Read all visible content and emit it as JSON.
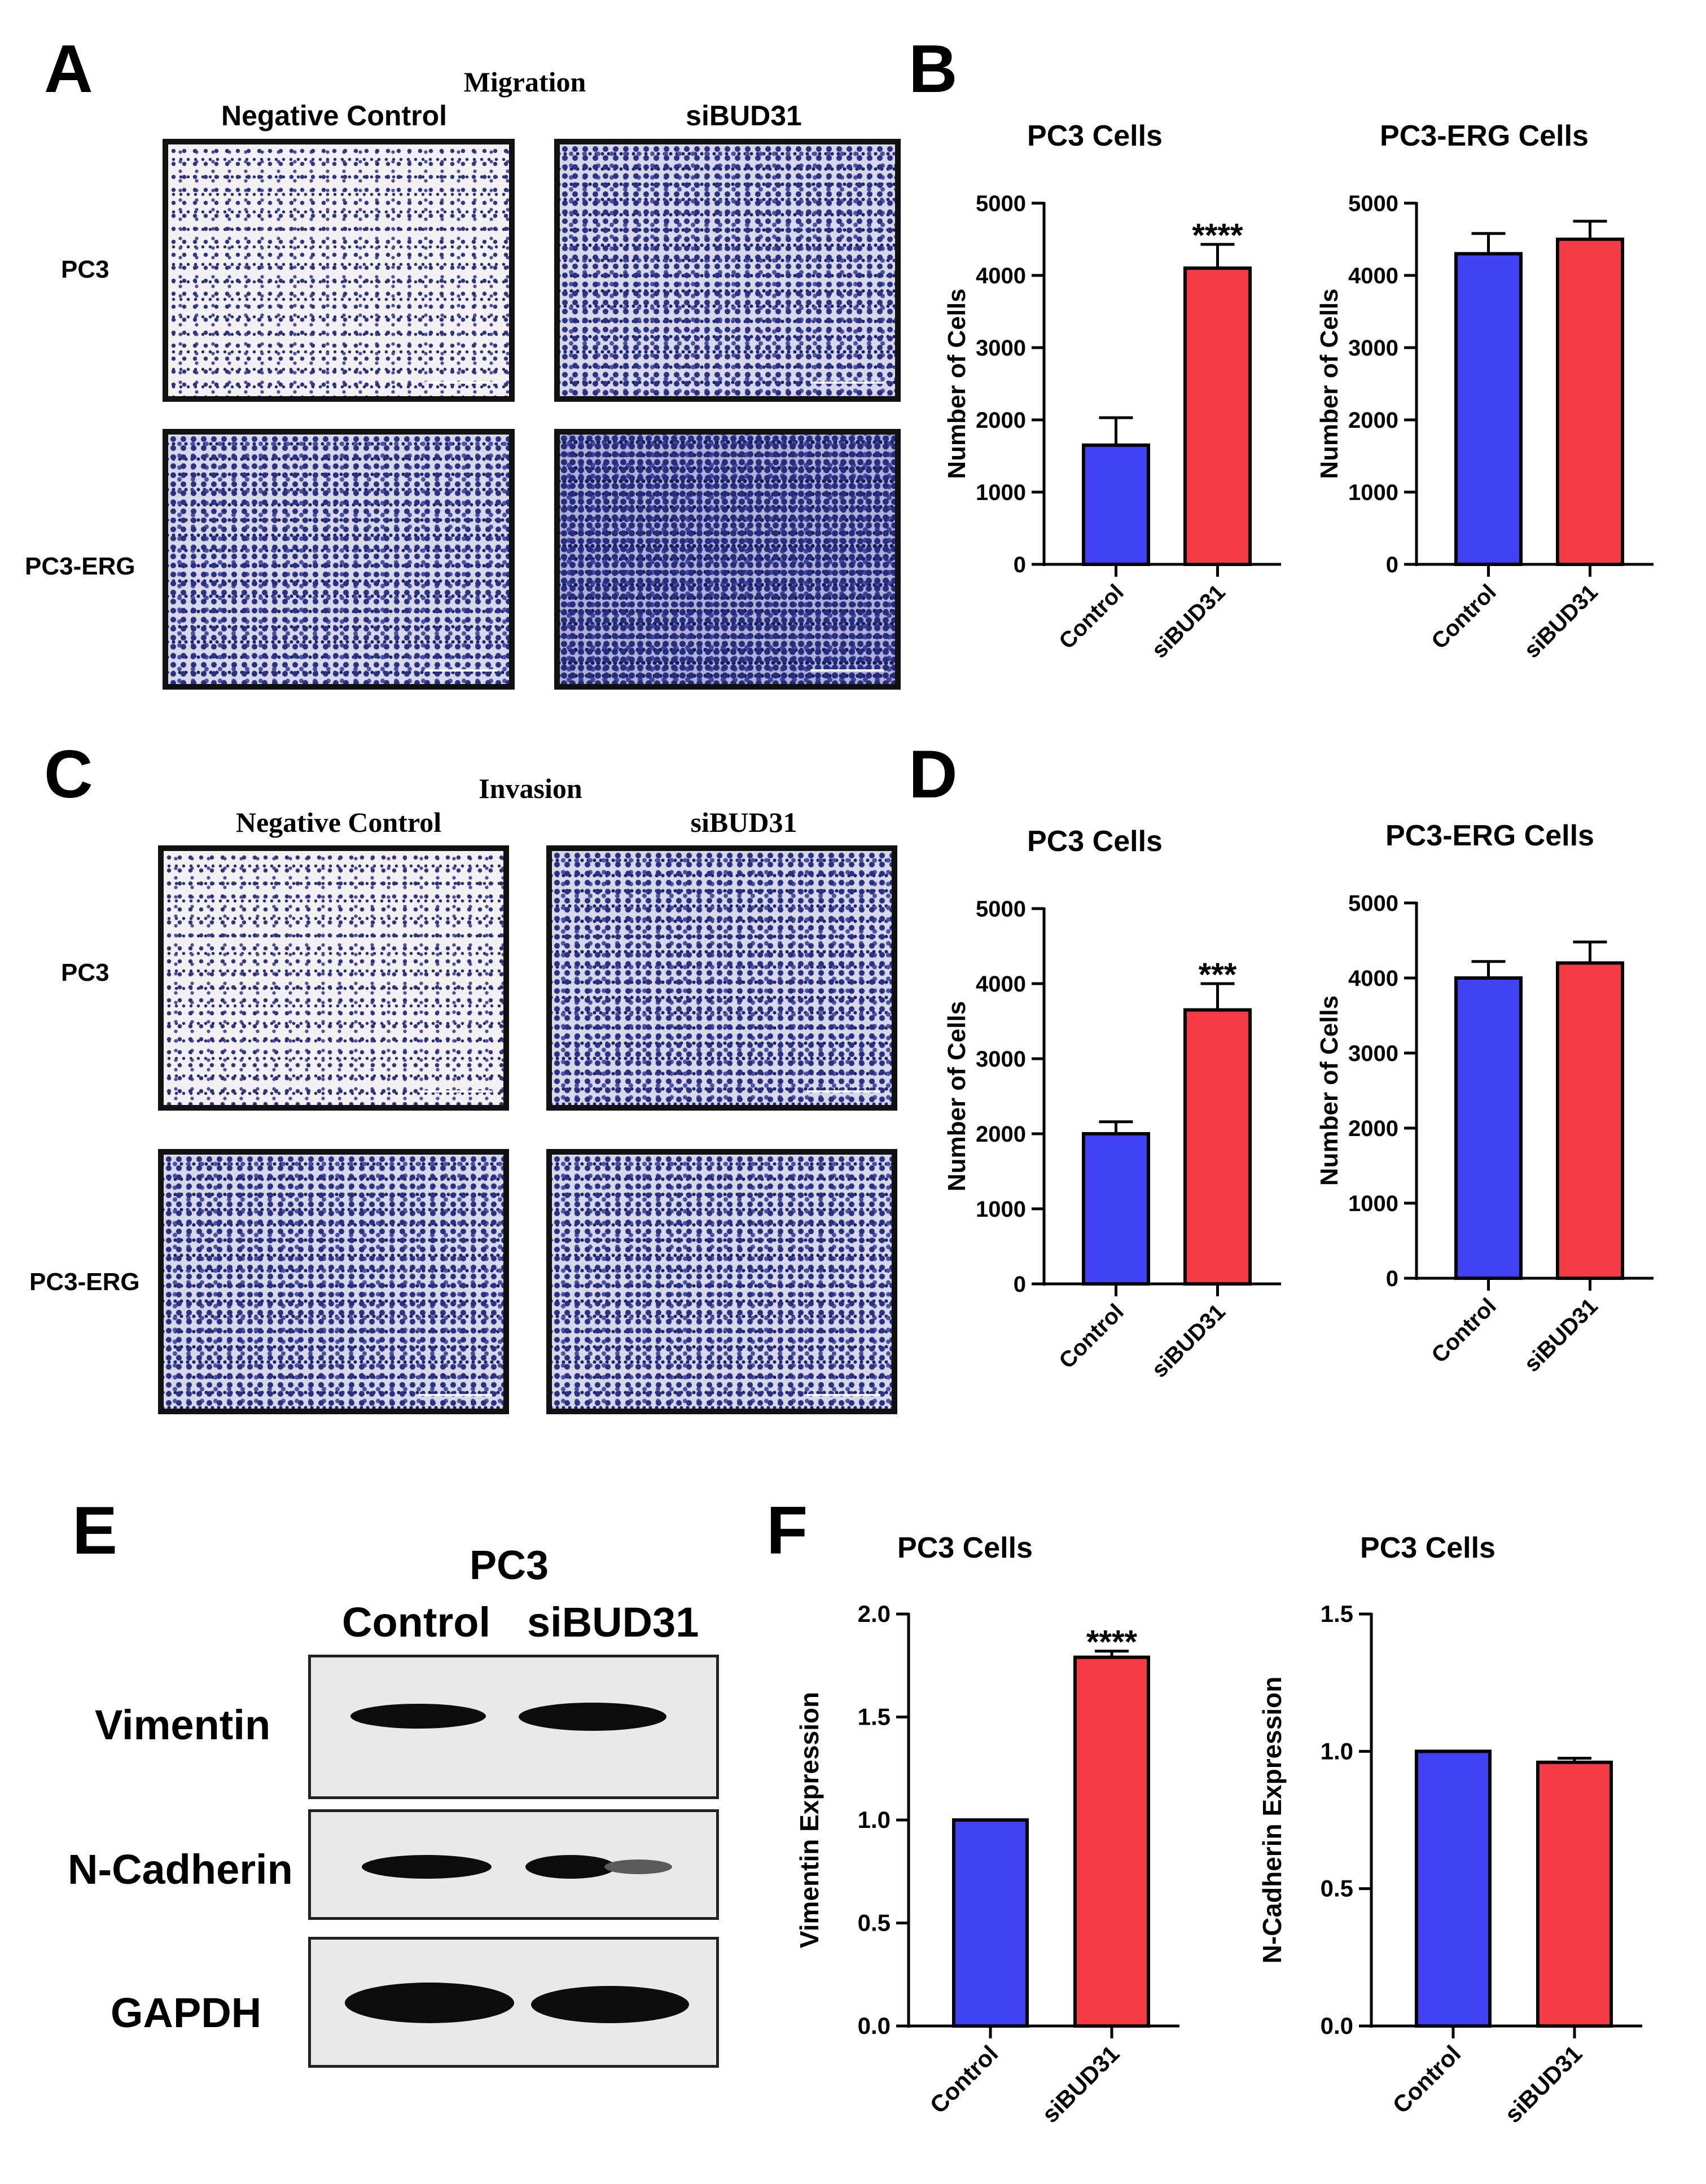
{
  "panels": {
    "A": {
      "label": "A",
      "title": "Migration",
      "col_headers": [
        "Negative Control",
        "siBUD31"
      ],
      "row_labels": [
        "PC3",
        "PC3-ERG"
      ]
    },
    "B": {
      "label": "B"
    },
    "C": {
      "label": "C",
      "title": "Invasion",
      "col_headers": [
        "Negative Control",
        "siBUD31"
      ],
      "row_labels": [
        "PC3",
        "PC3-ERG"
      ]
    },
    "D": {
      "label": "D"
    },
    "E": {
      "label": "E",
      "cell_line": "PC3",
      "lanes": [
        "Control",
        "siBUD31"
      ],
      "proteins": [
        "Vimentin",
        "N-Cadherin",
        "GAPDH"
      ]
    },
    "F": {
      "label": "F"
    }
  },
  "chart_data": [
    {
      "id": "B1",
      "panel": "B",
      "type": "bar",
      "title": "PC3 Cells",
      "xlabel": "",
      "ylabel": "Number of Cells",
      "categories": [
        "Control",
        "siBUD31"
      ],
      "values": [
        1650,
        4100
      ],
      "errors": [
        380,
        330
      ],
      "colors": [
        "#4040f5",
        "#f53a45"
      ],
      "ylim": [
        0,
        5000
      ],
      "yticks": [
        "0",
        "1000",
        "2000",
        "3000",
        "4000",
        "5000"
      ],
      "annotations": [
        "",
        "****"
      ]
    },
    {
      "id": "B2",
      "panel": "B",
      "type": "bar",
      "title": "PC3-ERG Cells",
      "xlabel": "",
      "ylabel": "Number of Cells",
      "categories": [
        "Control",
        "siBUD31"
      ],
      "values": [
        4300,
        4500
      ],
      "errors": [
        280,
        250
      ],
      "colors": [
        "#4040f5",
        "#f53a45"
      ],
      "ylim": [
        0,
        5000
      ],
      "yticks": [
        "0",
        "1000",
        "2000",
        "3000",
        "4000",
        "5000"
      ],
      "annotations": [
        "",
        ""
      ]
    },
    {
      "id": "D1",
      "panel": "D",
      "type": "bar",
      "title": "PC3 Cells",
      "xlabel": "",
      "ylabel": "Number of Cells",
      "categories": [
        "Control",
        "siBUD31"
      ],
      "values": [
        2000,
        3650
      ],
      "errors": [
        160,
        350
      ],
      "colors": [
        "#4040f5",
        "#f53a45"
      ],
      "ylim": [
        0,
        5000
      ],
      "yticks": [
        "0",
        "1000",
        "2000",
        "3000",
        "4000",
        "5000"
      ],
      "annotations": [
        "",
        "***"
      ]
    },
    {
      "id": "D2",
      "panel": "D",
      "type": "bar",
      "title": "PC3-ERG Cells",
      "xlabel": "",
      "ylabel": "Number of Cells",
      "categories": [
        "Control",
        "siBUD31"
      ],
      "values": [
        4000,
        4200
      ],
      "errors": [
        220,
        280
      ],
      "colors": [
        "#4040f5",
        "#f53a45"
      ],
      "ylim": [
        0,
        5000
      ],
      "yticks": [
        "0",
        "1000",
        "2000",
        "3000",
        "4000",
        "5000"
      ],
      "annotations": [
        "",
        ""
      ]
    },
    {
      "id": "F1",
      "panel": "F",
      "type": "bar",
      "title": "PC3 Cells",
      "xlabel": "",
      "ylabel": "Vimentin Expression",
      "categories": [
        "Control",
        "siBUD31"
      ],
      "values": [
        1.0,
        1.79
      ],
      "errors": [
        0,
        0.03
      ],
      "colors": [
        "#4040f5",
        "#f53a45"
      ],
      "ylim": [
        0,
        2.0
      ],
      "yticks": [
        "0.0",
        "0.5",
        "1.0",
        "1.5",
        "2.0"
      ],
      "annotations": [
        "",
        "****"
      ]
    },
    {
      "id": "F2",
      "panel": "F",
      "type": "bar",
      "title": "PC3 Cells",
      "xlabel": "",
      "ylabel": "N-Cadherin Expression",
      "categories": [
        "Control",
        "siBUD31"
      ],
      "values": [
        1.0,
        0.96
      ],
      "errors": [
        0,
        0.015
      ],
      "colors": [
        "#4040f5",
        "#f53a45"
      ],
      "ylim": [
        0,
        1.5
      ],
      "yticks": [
        "0.0",
        "0.5",
        "1.0",
        "1.5"
      ],
      "annotations": [
        "",
        ""
      ]
    }
  ]
}
